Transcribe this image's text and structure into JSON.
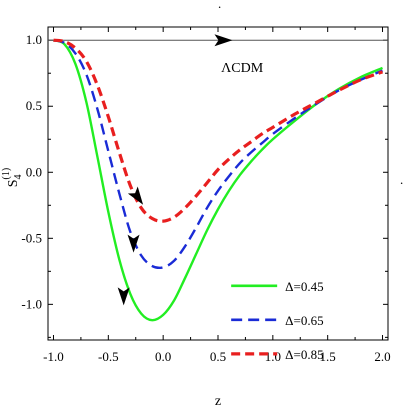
{
  "chart_data": {
    "type": "line",
    "xlabel": "z",
    "ylabel_main": "S",
    "ylabel_sub": "4",
    "ylabel_sup": "(1)",
    "xlim": [
      -1.05,
      2.05
    ],
    "ylim": [
      -1.27,
      1.1
    ],
    "x_ticks": [
      -1.0,
      -0.5,
      0.0,
      0.5,
      1.0,
      1.5,
      2.0
    ],
    "x_tick_labels": [
      "-1.0",
      "-0.5",
      "0.0",
      "0.5",
      "1.0",
      "1.5",
      "2.0"
    ],
    "y_ticks": [
      1.0,
      0.5,
      0.0,
      -0.5,
      -1.0
    ],
    "y_tick_labels": [
      "1.0",
      "0.5",
      "0.0",
      "-0.5",
      "-1.0"
    ],
    "reference_line": {
      "label": "ΛCDM",
      "y": 1.0,
      "color": "#555555"
    },
    "series": [
      {
        "name": "Δ=0.45",
        "color": "#22ee22",
        "dash": "solid",
        "x": [
          -1.0,
          -0.9,
          -0.8,
          -0.7,
          -0.6,
          -0.5,
          -0.4,
          -0.3,
          -0.2,
          -0.1,
          0.0,
          0.1,
          0.2,
          0.3,
          0.4,
          0.5,
          0.6,
          0.7,
          0.8,
          0.9,
          1.0,
          1.2,
          1.4,
          1.6,
          1.8,
          2.0
        ],
        "y": [
          1.0,
          0.97,
          0.82,
          0.53,
          0.12,
          -0.3,
          -0.66,
          -0.92,
          -1.07,
          -1.12,
          -1.08,
          -0.97,
          -0.8,
          -0.62,
          -0.44,
          -0.28,
          -0.14,
          -0.02,
          0.08,
          0.17,
          0.25,
          0.39,
          0.52,
          0.63,
          0.72,
          0.79
        ]
      },
      {
        "name": "Δ=0.65",
        "color": "#1a2bd6",
        "dash": "dashed",
        "x": [
          -1.0,
          -0.9,
          -0.8,
          -0.7,
          -0.6,
          -0.5,
          -0.4,
          -0.3,
          -0.2,
          -0.1,
          0.0,
          0.1,
          0.2,
          0.3,
          0.4,
          0.5,
          0.6,
          0.7,
          0.8,
          0.9,
          1.0,
          1.2,
          1.4,
          1.6,
          1.8,
          2.0
        ],
        "y": [
          1.0,
          0.98,
          0.9,
          0.74,
          0.48,
          0.16,
          -0.16,
          -0.45,
          -0.63,
          -0.71,
          -0.72,
          -0.67,
          -0.56,
          -0.42,
          -0.27,
          -0.14,
          -0.03,
          0.07,
          0.15,
          0.22,
          0.29,
          0.41,
          0.52,
          0.62,
          0.7,
          0.77
        ]
      },
      {
        "name": "Δ=0.85",
        "color": "#e81f1f",
        "dash": "dashed",
        "x": [
          -1.0,
          -0.9,
          -0.8,
          -0.7,
          -0.6,
          -0.5,
          -0.4,
          -0.3,
          -0.2,
          -0.1,
          0.0,
          0.1,
          0.2,
          0.3,
          0.4,
          0.5,
          0.6,
          0.7,
          0.8,
          0.9,
          1.0,
          1.2,
          1.4,
          1.6,
          1.8,
          2.0
        ],
        "y": [
          1.0,
          0.99,
          0.94,
          0.84,
          0.66,
          0.42,
          0.15,
          -0.1,
          -0.27,
          -0.35,
          -0.37,
          -0.34,
          -0.27,
          -0.18,
          -0.08,
          0.02,
          0.1,
          0.17,
          0.23,
          0.29,
          0.34,
          0.44,
          0.53,
          0.62,
          0.7,
          0.76
        ]
      }
    ],
    "arrows": [
      {
        "x": 0.55,
        "y": 1.0,
        "direction": "right"
      },
      {
        "x": -0.23,
        "y": -0.19,
        "direction": "down-right"
      },
      {
        "x": -0.27,
        "y": -0.54,
        "direction": "down"
      },
      {
        "x": -0.36,
        "y": -0.94,
        "direction": "down"
      }
    ],
    "legend": {
      "position": "right"
    },
    "grid": false,
    "stray_marks": [
      ".",
      "."
    ]
  }
}
